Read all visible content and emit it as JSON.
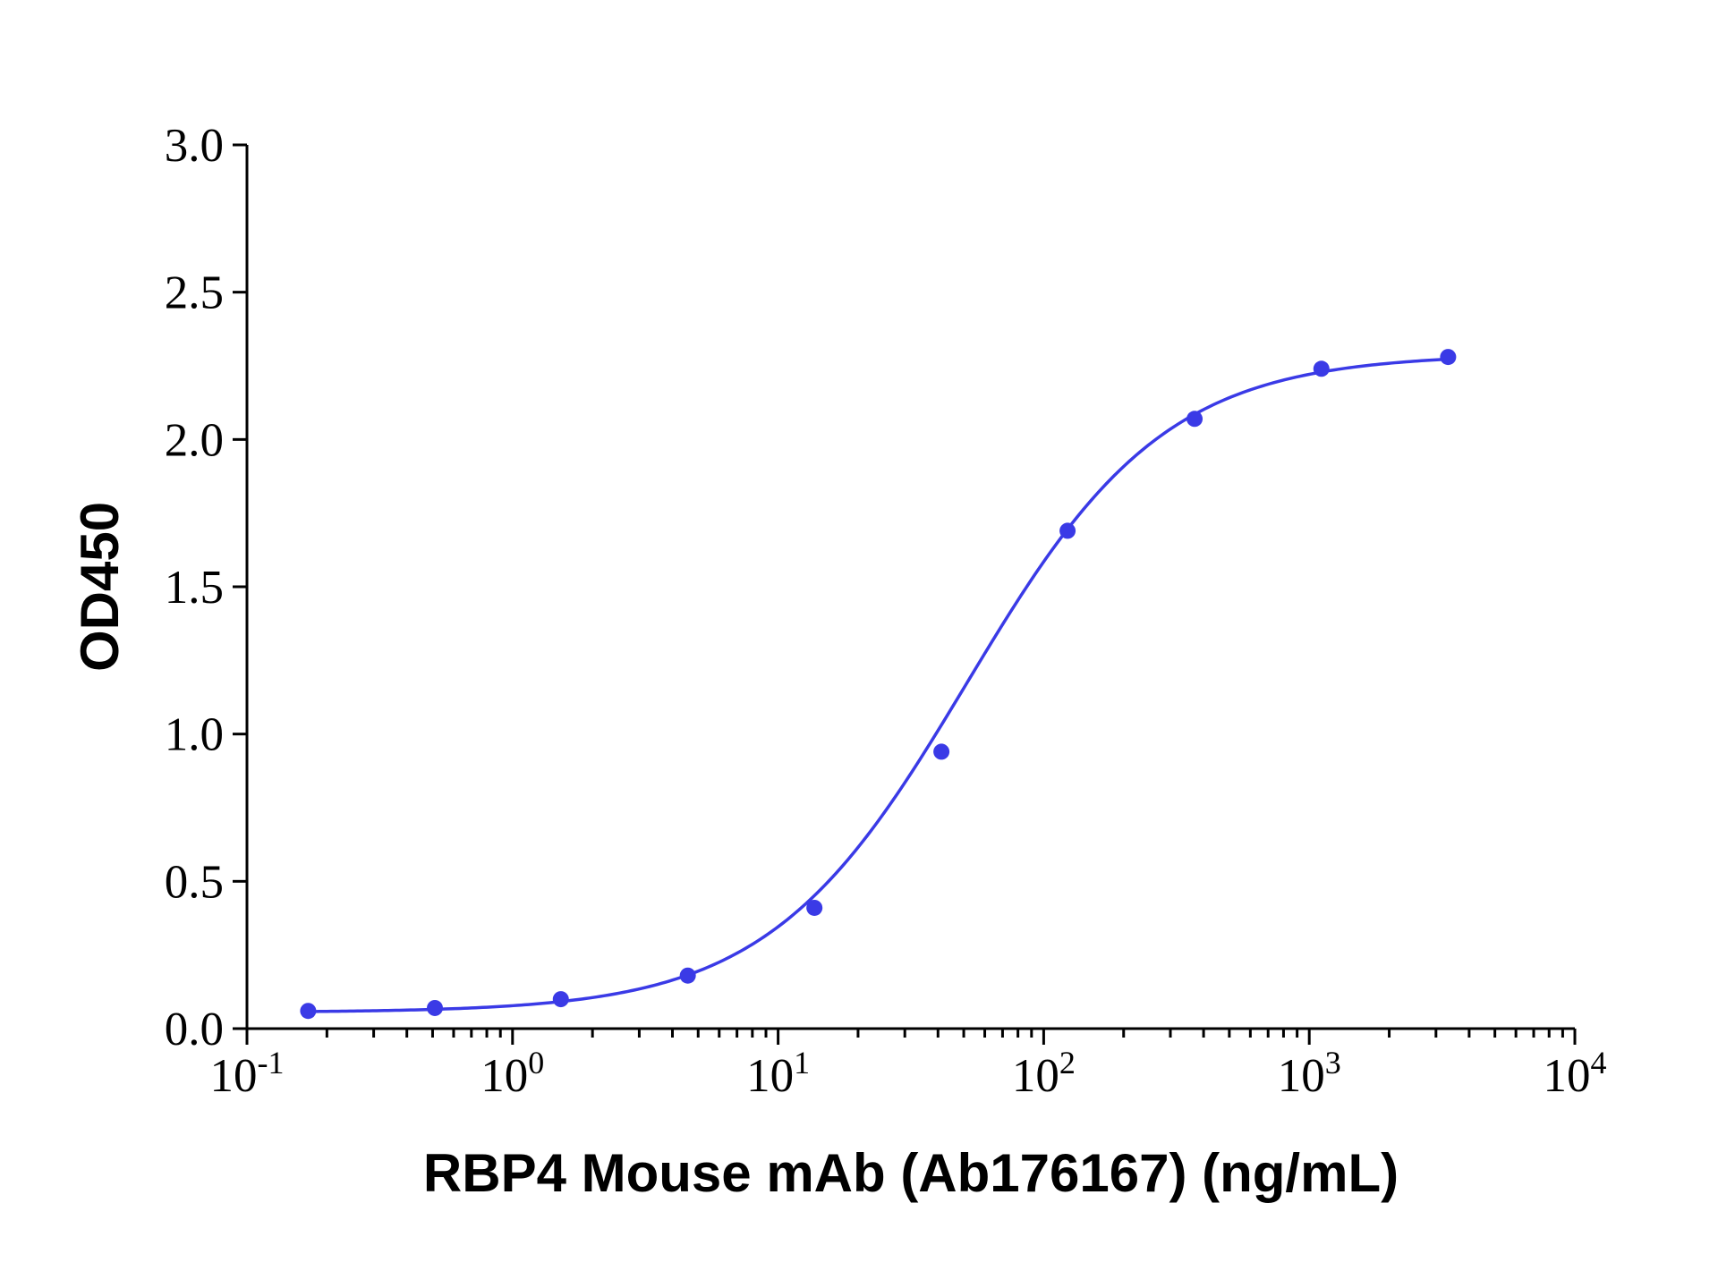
{
  "chart_data": {
    "type": "scatter",
    "title": "",
    "xlabel": "RBP4 Mouse mAb (Ab176167) (ng/mL)",
    "ylabel": "OD450",
    "x_scale": "log",
    "xlim": [
      0.1,
      10000
    ],
    "ylim": [
      0.0,
      3.0
    ],
    "x_ticks": [
      {
        "value": 0.1,
        "base": "10",
        "exp": "-1"
      },
      {
        "value": 1,
        "base": "10",
        "exp": "0"
      },
      {
        "value": 10,
        "base": "10",
        "exp": "1"
      },
      {
        "value": 100,
        "base": "10",
        "exp": "2"
      },
      {
        "value": 1000,
        "base": "10",
        "exp": "3"
      },
      {
        "value": 10000,
        "base": "10",
        "exp": "4"
      }
    ],
    "y_ticks": [
      {
        "value": 0.0,
        "label": "0.0"
      },
      {
        "value": 0.5,
        "label": "0.5"
      },
      {
        "value": 1.0,
        "label": "1.0"
      },
      {
        "value": 1.5,
        "label": "1.5"
      },
      {
        "value": 2.0,
        "label": "2.0"
      },
      {
        "value": 2.5,
        "label": "2.5"
      },
      {
        "value": 3.0,
        "label": "3.0"
      }
    ],
    "grid": false,
    "legend": "none",
    "series": [
      {
        "color": "#3a3ae6",
        "fit": "four-parameter logistic",
        "x": [
          0.17,
          0.51,
          1.52,
          4.57,
          13.7,
          41.2,
          123,
          370,
          1111,
          3333
        ],
        "y": [
          0.06,
          0.07,
          0.1,
          0.18,
          0.41,
          0.94,
          1.69,
          2.07,
          2.24,
          2.28
        ]
      }
    ]
  }
}
